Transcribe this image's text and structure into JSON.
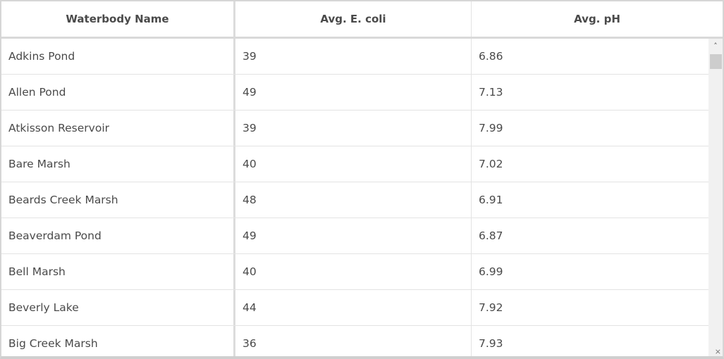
{
  "columns": [
    "Waterbody Name",
    "Avg. E. coli",
    "Avg. pH"
  ],
  "rows": [
    [
      "Adkins Pond",
      "39",
      "6.86"
    ],
    [
      "Allen Pond",
      "49",
      "7.13"
    ],
    [
      "Atkisson Reservoir",
      "39",
      "7.99"
    ],
    [
      "Bare Marsh",
      "40",
      "7.02"
    ],
    [
      "Beards Creek Marsh",
      "48",
      "6.91"
    ],
    [
      "Beaverdam Pond",
      "49",
      "6.87"
    ],
    [
      "Bell Marsh",
      "40",
      "6.99"
    ],
    [
      "Beverly Lake",
      "44",
      "7.92"
    ],
    [
      "Big Creek Marsh",
      "36",
      "7.93"
    ]
  ],
  "icons": {
    "scroll_up": "chevron-up-icon",
    "resize": "resize-grip-icon"
  }
}
